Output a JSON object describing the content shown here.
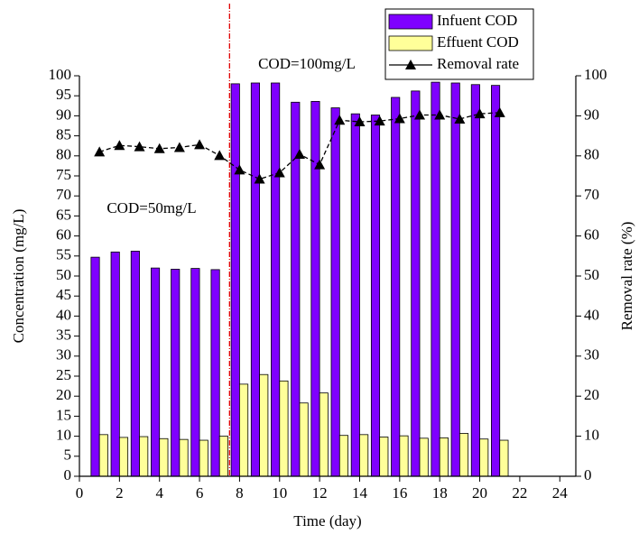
{
  "chart_data": {
    "type": "bar",
    "x_label": "Time (day)",
    "y_label": "Concentration (mg/L)",
    "y2_label": "Removal rate (%)",
    "annotations": [
      "COD=50mg/L",
      "COD=100mg/L"
    ],
    "vline": 7.5,
    "vline_color": "#e00000",
    "x": [
      1,
      2,
      3,
      4,
      5,
      6,
      7,
      8,
      9,
      10,
      11,
      12,
      13,
      14,
      15,
      16,
      17,
      18,
      19,
      20,
      21
    ],
    "series": [
      {
        "name": "Infuent COD",
        "color": "#7f00ff",
        "type": "bar",
        "values": [
          54.7,
          56.0,
          56.2,
          52.0,
          51.7,
          51.9,
          51.6,
          98.0,
          98.2,
          98.2,
          93.4,
          93.6,
          92.0,
          90.5,
          90.2,
          94.6,
          96.2,
          98.4,
          98.2,
          97.8,
          97.6
        ]
      },
      {
        "name": "Effuent COD",
        "color": "#ffff99",
        "type": "bar",
        "values": [
          10.4,
          9.7,
          9.9,
          9.4,
          9.2,
          9.0,
          10.0,
          23.0,
          25.4,
          23.8,
          18.3,
          20.8,
          10.2,
          10.4,
          9.8,
          10.1,
          9.5,
          9.6,
          10.7,
          9.3,
          9.0
        ]
      },
      {
        "name": "Removal rate",
        "color": "#000000",
        "type": "line",
        "axis": "y2",
        "values": [
          81.0,
          82.6,
          82.3,
          81.8,
          82.1,
          82.8,
          80.1,
          76.5,
          74.2,
          75.8,
          80.4,
          77.8,
          88.9,
          88.5,
          88.7,
          89.3,
          90.2,
          90.2,
          89.2,
          90.5,
          90.8
        ]
      }
    ],
    "xlim": [
      0,
      24.8
    ],
    "xticks": [
      0,
      2,
      4,
      6,
      8,
      10,
      12,
      14,
      16,
      18,
      20,
      22,
      24
    ],
    "ylim": [
      0,
      100
    ],
    "yticks": [
      0,
      5,
      10,
      15,
      20,
      25,
      30,
      35,
      40,
      45,
      50,
      55,
      60,
      65,
      70,
      75,
      80,
      85,
      90,
      95,
      100
    ],
    "y2lim": [
      0,
      100
    ],
    "y2ticks": [
      0,
      10,
      20,
      30,
      40,
      50,
      60,
      70,
      80,
      90,
      100
    ]
  }
}
